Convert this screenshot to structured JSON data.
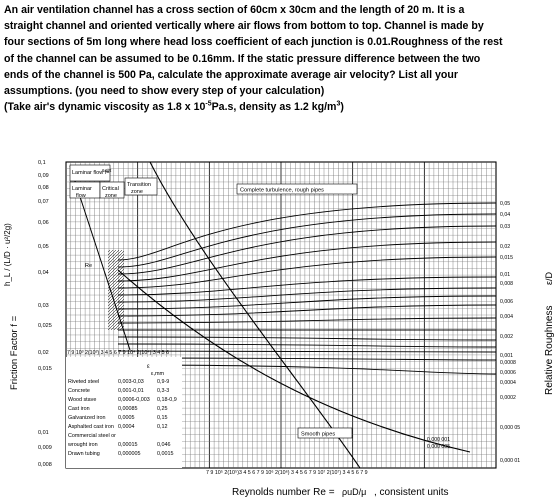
{
  "problem": {
    "line1": "An air ventilation channel has a cross section of 60cm x 30cm and the length of 20 m.  It is a",
    "line2": "straight channel and oriented vertically where air flows from bottom to top.  Channel is made by",
    "line3": "four sections of 5m long where head loss coefficient of each junction is 0.01.Roughness of the rest",
    "line4": "of the channel can be assumed to be 0.16mm.   If the static pressure difference between the two",
    "line5": "ends of the channel is 500 Pa, calculate the approximate average air velocity?   List all your",
    "line6": "assumptions. (you need to show every step of your calculation)",
    "line7_pre": "(Take air's dynamic viscosity as 1.8 x 10",
    "line7_exp": "-5",
    "line7_mid": "Pa.s, density as 1.2 kg/m",
    "line7_sup": "3",
    "line7_post": ")"
  },
  "moody": {
    "left_axis_label": "Friction Factor f =",
    "left_axis_formula": "h_L / (L/D · u²/2g)",
    "right_axis_label": "Relative Roughness",
    "right_axis_formula": "ε/D",
    "x_axis_label": "Reynolds number Re =",
    "x_axis_formula": "ρuD/μ",
    "x_axis_units": ", consistent units",
    "f_ticks": [
      "0,1",
      "0,09",
      "0,08",
      "0,07",
      "0,06",
      "0,05",
      "0,04",
      "0,03",
      "0,025",
      "0,02",
      "0,015",
      "0,01",
      "0,009",
      "0,008"
    ],
    "eps_ticks": [
      "0,05",
      "0,04",
      "0,03",
      "0,02",
      "0,015",
      "0,01",
      "0,008",
      "0,006",
      "0,004",
      "0,002",
      "0,001",
      "0,0008",
      "0,0006",
      "0,0004",
      "0,0002",
      "0,000 05",
      "0,000 01"
    ],
    "region_labels": {
      "laminar_flow": "Laminar flow f=",
      "laminar_flow_eq": "64/R",
      "laminar": "Laminar",
      "flow": "flow",
      "critical": "Critical",
      "zone": "zone",
      "transition": "Transition",
      "transition_zone": "zone",
      "complete_turbulence": "Complete turbulence, rough pipes",
      "smooth_pipes": "Smooth pipes",
      "re_cr": "Re",
      "eps_0_000001": "0,000 001",
      "eps_0_000005": "0,000 005"
    },
    "top_tick_row": "7 9 10³ 2(10³) 3 4 5 6 7 9 10⁴ 2(10⁴) 3 4 5 6",
    "bottom_tick_row": "7 9 10⁵ 2(10⁵)3 4 5 6 7 9 10⁶ 2(10⁶) 3 4 5 6 7 9 10⁷ 2(10⁷) 3 4 5 6 7 9",
    "roughness_table": {
      "header_eps": "ε",
      "header_eps_mm": "ε,mm",
      "rows": [
        {
          "material": "Riveted steel",
          "ft": "0,003-0,03",
          "mm": "0,9-9"
        },
        {
          "material": "Concrete",
          "ft": "0,001-0,01",
          "mm": "0,3-3"
        },
        {
          "material": "Wood stave",
          "ft": "0,0006-0,003",
          "mm": "0,18-0,9"
        },
        {
          "material": "Cast iron",
          "ft": "0,00085",
          "mm": "0,25"
        },
        {
          "material": "Galvanized iron",
          "ft": "0,0005",
          "mm": "0,15"
        },
        {
          "material": "Asphalted cast iron",
          "ft": "0,0004",
          "mm": "0,12"
        },
        {
          "material": "Commercial steel or",
          "ft": "",
          "mm": ""
        },
        {
          "material": "wrought iron",
          "ft": "0,00015",
          "mm": "0,046"
        },
        {
          "material": "Drawn tubing",
          "ft": "0,000005",
          "mm": "0,0015"
        }
      ]
    }
  }
}
